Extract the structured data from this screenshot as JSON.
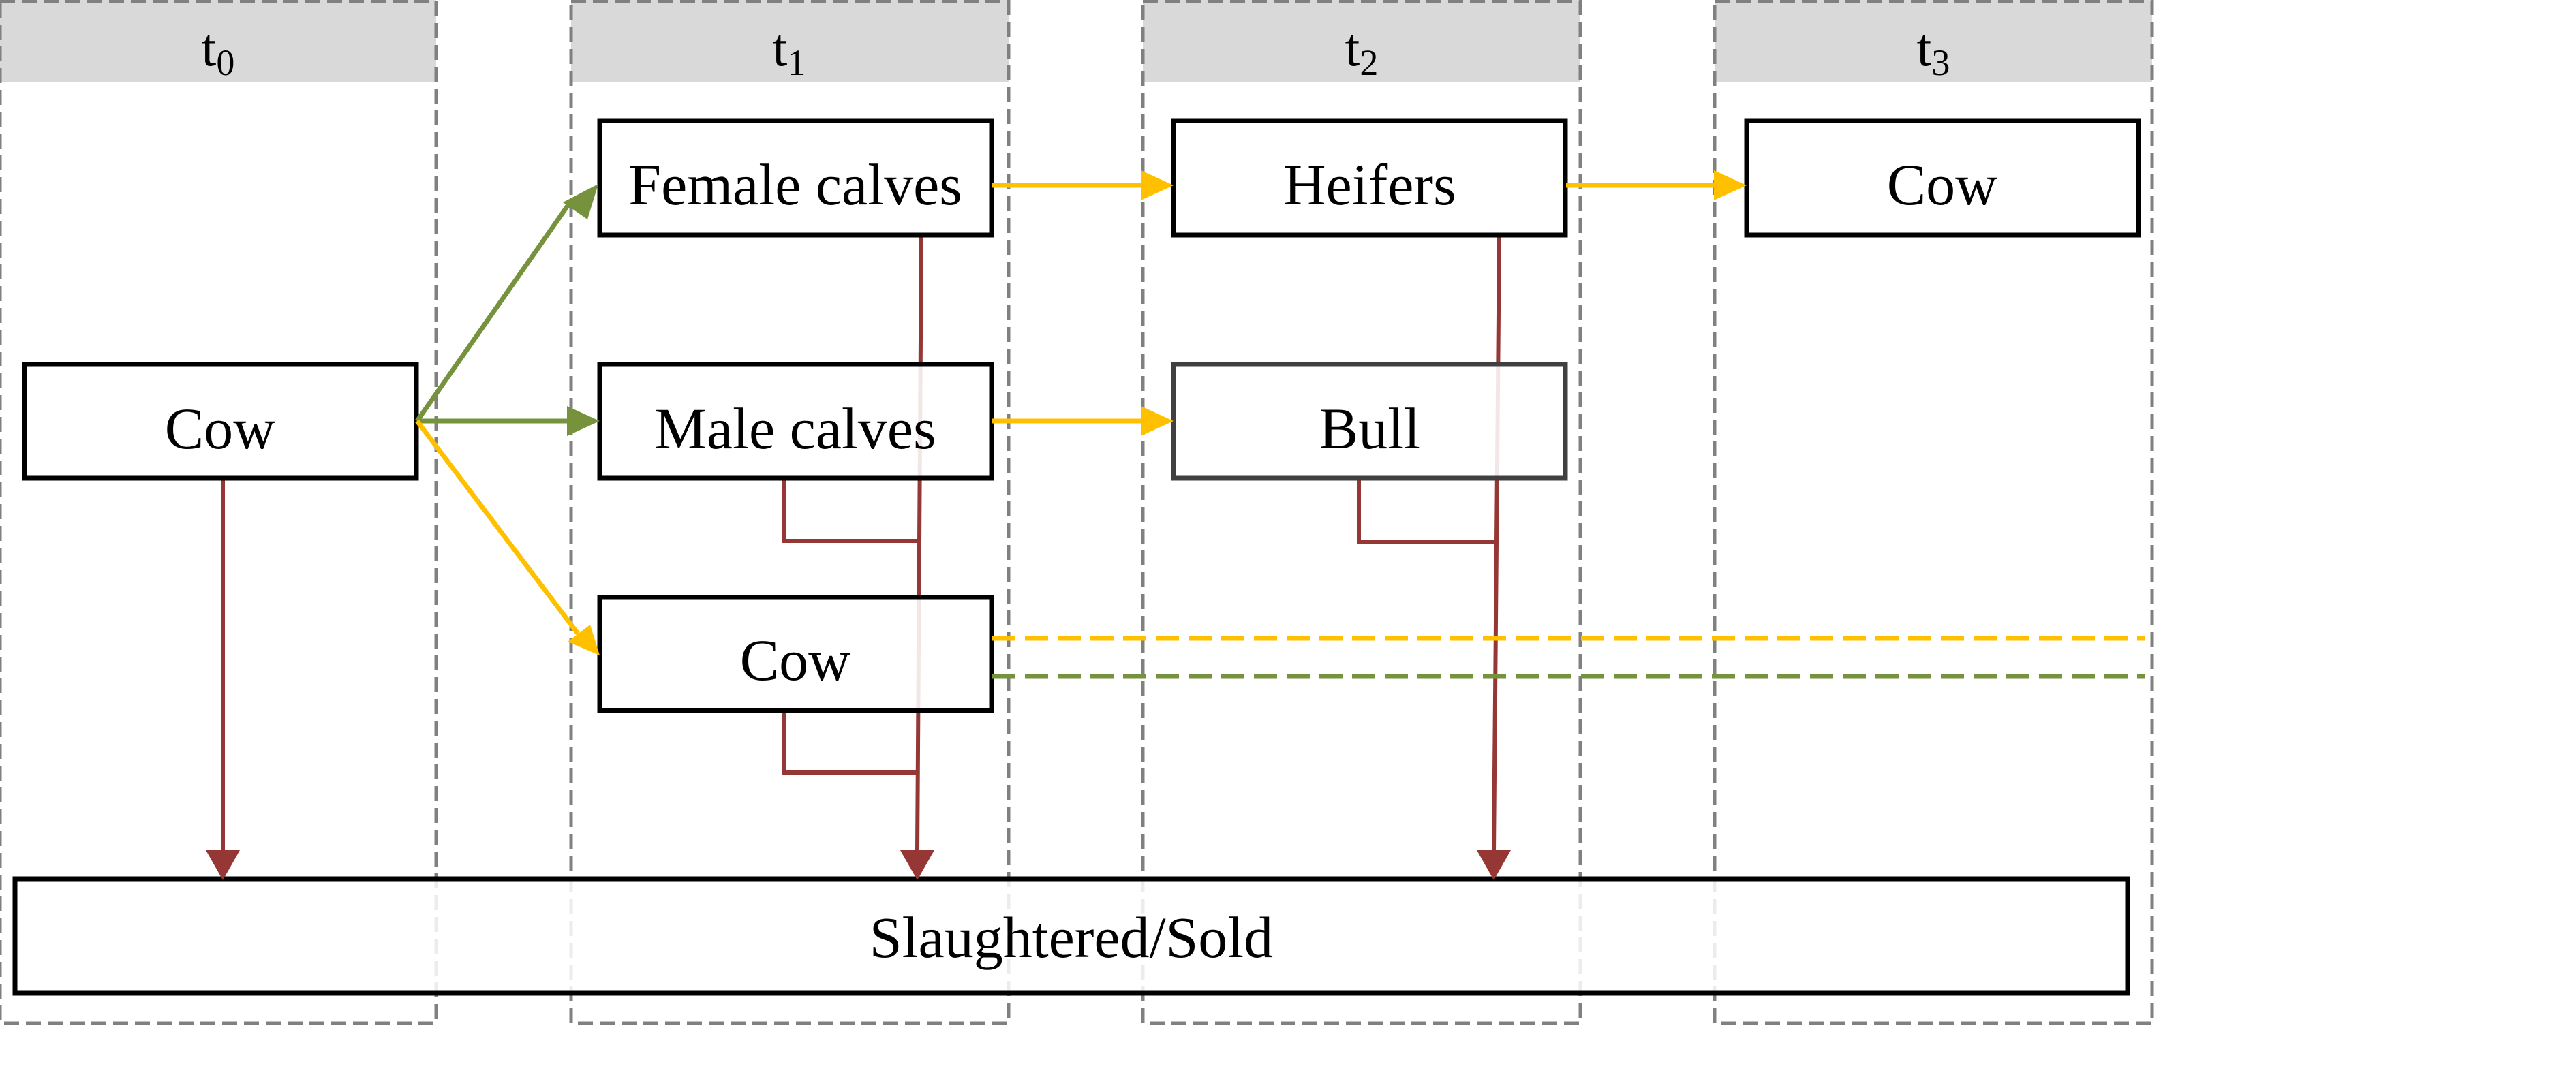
{
  "periods": [
    {
      "label": "t",
      "sub": "0"
    },
    {
      "label": "t",
      "sub": "1"
    },
    {
      "label": "t",
      "sub": "2"
    },
    {
      "label": "t",
      "sub": "3"
    }
  ],
  "nodes": {
    "cow_t0": "Cow",
    "female_calves": "Female calves",
    "male_calves": "Male calves",
    "cow_t1": "Cow",
    "heifers": "Heifers",
    "bull": "Bull",
    "cow_t3": "Cow",
    "slaughtered": "Slaughtered/Sold"
  },
  "colors": {
    "green": "#76923c",
    "yellow": "#ffc000",
    "red": "#953735",
    "header": "#d9d9d9",
    "dash_border": "#808080"
  }
}
